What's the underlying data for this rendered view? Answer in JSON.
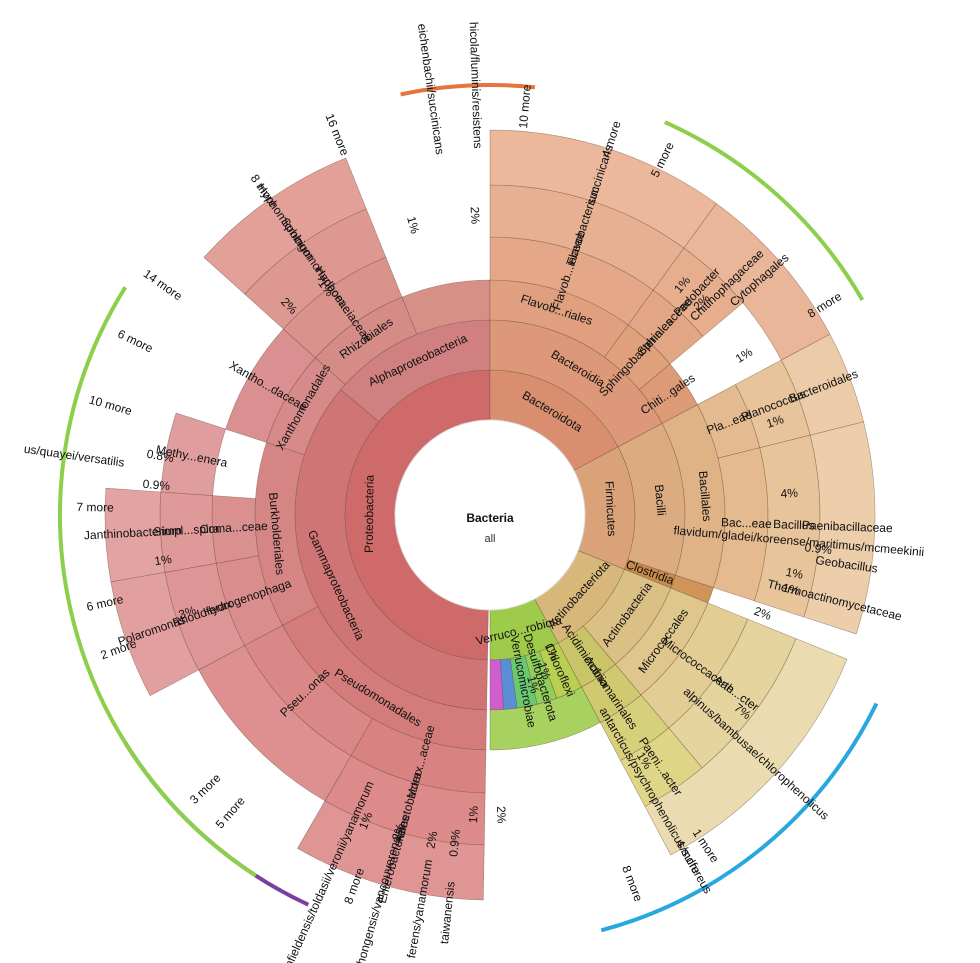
{
  "center": {
    "title": "Bacteria",
    "subtitle": "all"
  },
  "chart_data": {
    "type": "sunburst",
    "root": "Bacteria",
    "arcs": [
      {
        "start": -12,
        "end": 6,
        "color": "#e7743a"
      },
      {
        "start": 24,
        "end": 60,
        "color": "#8ccf4a"
      },
      {
        "start": 116,
        "end": 165,
        "color": "#29a8e0"
      },
      {
        "start": 205,
        "end": 238,
        "color": "#7b3fa0"
      },
      {
        "start": -147,
        "end": -58,
        "color": "#8ccf4a"
      }
    ],
    "levels": [
      {
        "r0": 95,
        "r1": 145,
        "nodes": [
          {
            "label": "Proteobacteria",
            "start": -179,
            "end": 0,
            "color": "#cf6a6a"
          },
          {
            "label": "Bacteroidota",
            "start": 0,
            "end": 62,
            "color": "#d98f6f"
          },
          {
            "label": "Firmicutes",
            "start": 62,
            "end": 112,
            "color": "#d9a278"
          },
          {
            "label": "Actinobacteriota",
            "start": 112,
            "end": 152,
            "color": "#d8b77a"
          },
          {
            "label": "Verruco...robiota",
            "start": 152,
            "end": 180,
            "color": "#9ecb4a"
          }
        ]
      },
      {
        "r0": 145,
        "r1": 195,
        "nodes": [
          {
            "label": "Gammaproteobacteria",
            "start": -179,
            "end": -50,
            "color": "#d07575"
          },
          {
            "label": "Alphaproteobacteria",
            "start": -50,
            "end": 0,
            "color": "#d08080"
          },
          {
            "label": "Bacteroidia",
            "start": 0,
            "end": 62,
            "color": "#dc9878"
          },
          {
            "label": "Bacilli",
            "start": 62,
            "end": 108,
            "color": "#dcab80"
          },
          {
            "label": "Clostridia",
            "start": 108,
            "end": 112,
            "color": "#c98a4a"
          },
          {
            "label": "Actinobacteria",
            "start": 112,
            "end": 140,
            "color": "#dbc085"
          },
          {
            "label": "Acidimicrobiia",
            "start": 140,
            "end": 152,
            "color": "#c9c468"
          },
          {
            "label": "Chloroflexi",
            "start": 152,
            "end": 160,
            "color": "#b8cf52"
          },
          {
            "label": "Desulfobacterota",
            "start": 160,
            "end": 166,
            "color": "#8fcf5a"
          },
          {
            "label": "Verrucomicrobiae",
            "start": 166,
            "end": 172,
            "color": "#6cc86e"
          },
          {
            "label": "",
            "start": 172,
            "end": 176,
            "color": "#5a8fd8"
          },
          {
            "label": "",
            "start": 176,
            "end": 180,
            "color": "#cf5fcf"
          }
        ]
      },
      {
        "r0": 195,
        "r1": 235,
        "nodes": [
          {
            "label": "Pseudomonadales",
            "start": -179,
            "end": -118,
            "color": "#d47c7c"
          },
          {
            "label": "Burkholderiales",
            "start": -118,
            "end": -72,
            "color": "#d68585"
          },
          {
            "label": "Xanthomonadales",
            "start": -72,
            "end": -48,
            "color": "#d68a8a"
          },
          {
            "label": "Rhizobiales",
            "start": -48,
            "end": -22,
            "color": "#d58b86"
          },
          {
            "label": "",
            "start": -22,
            "end": 0,
            "color": "#d69088"
          },
          {
            "label": "Flavob...riales",
            "start": 0,
            "end": 36,
            "color": "#e0a080"
          },
          {
            "label": "Sphingobacteriales",
            "start": 36,
            "end": 50,
            "color": "#dfa07c"
          },
          {
            "label": "Chiti...gales",
            "start": 50,
            "end": 62,
            "color": "#dd9a76"
          },
          {
            "label": "Bacillales",
            "start": 62,
            "end": 108,
            "color": "#e0b387"
          },
          {
            "label": "",
            "start": 108,
            "end": 112,
            "color": "#cf9456"
          },
          {
            "label": "Micrococcales",
            "start": 112,
            "end": 140,
            "color": "#dec68c"
          },
          {
            "label": "Actinomarinales",
            "start": 140,
            "end": 152,
            "color": "#d0c970"
          },
          {
            "label": "",
            "start": 152,
            "end": 180,
            "color": "#a8d260"
          }
        ]
      },
      {
        "r0": 235,
        "r1": 278,
        "nodes": [
          {
            "label": "Morax...aceae",
            "start": -179,
            "end": -150,
            "color": "#d88282"
          },
          {
            "label": "Pseu...onas",
            "start": -150,
            "end": -118,
            "color": "#da8787"
          },
          {
            "label": "Hydrogenophaga",
            "start": -118,
            "end": -100,
            "color": "#da8d8d"
          },
          {
            "label": "Coma...ceae",
            "start": -100,
            "end": -86,
            "color": "#db9090"
          },
          {
            "label": "Xantho...daceae",
            "start": -72,
            "end": -48,
            "color": "#da9090"
          },
          {
            "label": "Hyphom...iaceae",
            "start": -48,
            "end": -22,
            "color": "#da928c"
          },
          {
            "label": "Flavob...iaceae",
            "start": 0,
            "end": 36,
            "color": "#e4a888"
          },
          {
            "label": "Sphin...aceae",
            "start": 36,
            "end": 50,
            "color": "#e3a684"
          },
          {
            "label": "Pla...eae",
            "start": 62,
            "end": 76,
            "color": "#e4ba90"
          },
          {
            "label": "Bac...eae",
            "start": 76,
            "end": 108,
            "color": "#e4ba8e"
          },
          {
            "label": "Micrococcaceae",
            "start": 112,
            "end": 140,
            "color": "#e2cd94"
          },
          {
            "label": "",
            "start": 140,
            "end": 152,
            "color": "#d7d07a"
          }
        ]
      },
      {
        "r0": 278,
        "r1": 330,
        "nodes": [
          {
            "label": "Acinetobacter",
            "start": -179,
            "end": -150,
            "color": "#dc8a8a"
          },
          {
            "label": "",
            "start": -150,
            "end": -118,
            "color": "#de9090"
          },
          {
            "label": "Rhodoferax",
            "start": -118,
            "end": -100,
            "color": "#de9595"
          },
          {
            "label": "Simpl...spira",
            "start": -100,
            "end": -86,
            "color": "#df9999"
          },
          {
            "label": "Methy...enera",
            "start": -86,
            "end": -72,
            "color": "#df9d9d"
          },
          {
            "label": "Sphingomonadaceae",
            "start": -48,
            "end": -22,
            "color": "#de9892"
          },
          {
            "label": "Flavobacterium",
            "start": 0,
            "end": 36,
            "color": "#e8b092"
          },
          {
            "label": "Pedobacter",
            "start": 36,
            "end": 50,
            "color": "#e7ae8e"
          },
          {
            "label": "Planococcus",
            "start": 62,
            "end": 76,
            "color": "#e8c49a"
          },
          {
            "label": "Bacillus",
            "start": 76,
            "end": 108,
            "color": "#e8c49a"
          },
          {
            "label": "Arth...cter",
            "start": 112,
            "end": 140,
            "color": "#e6d49e"
          },
          {
            "label": "Paeni...acter",
            "start": 140,
            "end": 152,
            "color": "#dfd586"
          }
        ]
      },
      {
        "r0": 330,
        "r1": 385,
        "nodes": [
          {
            "label": "Enterobacterales",
            "start": -179,
            "end": -150,
            "color": "#e09595"
          },
          {
            "label": "Polaromonas",
            "start": -118,
            "end": -100,
            "color": "#e29f9f"
          },
          {
            "label": "Janthinobacterium",
            "start": -100,
            "end": -86,
            "color": "#e3a3a3"
          },
          {
            "label": "Hyphomicrobium",
            "start": -48,
            "end": -22,
            "color": "#e2a099"
          },
          {
            "label": "succinicans",
            "start": 0,
            "end": 36,
            "color": "#ebb89c"
          },
          {
            "label": "Cytophagales",
            "start": 36,
            "end": 62,
            "color": "#eab69a"
          },
          {
            "label": "Bacteroidales",
            "start": 62,
            "end": 76,
            "color": "#eccca8"
          },
          {
            "label": "Paenibacillaceae",
            "start": 76,
            "end": 108,
            "color": "#ecceaa"
          },
          {
            "label": "alpinus/bambusae/chlorophenolicus",
            "start": 112,
            "end": 152,
            "color": "#eadcb0"
          }
        ]
      }
    ],
    "outer_labels": [
      {
        "text": "Bacteria",
        "angle": 0,
        "r": 0
      },
      {
        "text": "16 more",
        "angle": -22,
        "r": 410
      },
      {
        "text": "8 more",
        "angle": -35,
        "r": 395
      },
      {
        "text": "14 more",
        "angle": -55,
        "r": 400
      },
      {
        "text": "6 more",
        "angle": -64,
        "r": 395
      },
      {
        "text": "10 more",
        "angle": -74,
        "r": 395
      },
      {
        "text": "7 more",
        "angle": -89,
        "r": 395
      },
      {
        "text": "6 more",
        "angle": -103,
        "r": 395
      },
      {
        "text": "2 more",
        "angle": -110,
        "r": 395
      },
      {
        "text": "3 more",
        "angle": -134,
        "r": 395
      },
      {
        "text": "5 more",
        "angle": -139,
        "r": 395
      },
      {
        "text": "8 more",
        "angle": -160,
        "r": 395
      },
      {
        "text": "10 more",
        "angle": 5,
        "r": 410
      },
      {
        "text": "4 more",
        "angle": 18,
        "r": 395
      },
      {
        "text": "5 more",
        "angle": 26,
        "r": 395
      },
      {
        "text": "8 more",
        "angle": 58,
        "r": 395
      },
      {
        "text": "1 more",
        "angle": 147,
        "r": 395
      },
      {
        "text": "4 more",
        "angle": 150,
        "r": 395
      },
      {
        "text": "8 more",
        "angle": 159,
        "r": 395
      }
    ],
    "percent_labels": [
      {
        "text": "1%",
        "angle": -15,
        "r": 300
      },
      {
        "text": "2%",
        "angle": -3,
        "r": 300
      },
      {
        "text": "1%",
        "angle": -36,
        "r": 280
      },
      {
        "text": "2%",
        "angle": -44,
        "r": 290
      },
      {
        "text": "0.8%",
        "angle": -80,
        "r": 335
      },
      {
        "text": "0.9%",
        "angle": -85,
        "r": 335
      },
      {
        "text": "1%",
        "angle": -98,
        "r": 330
      },
      {
        "text": "3%",
        "angle": -108,
        "r": 318
      },
      {
        "text": "1%",
        "angle": -158,
        "r": 330
      },
      {
        "text": "2%",
        "angle": -164,
        "r": 330
      },
      {
        "text": "2%",
        "angle": -170,
        "r": 330
      },
      {
        "text": "0.9%",
        "angle": -174,
        "r": 330
      },
      {
        "text": "1%",
        "angle": -177,
        "r": 300
      },
      {
        "text": "2%",
        "angle": 178,
        "r": 300
      },
      {
        "text": "1%",
        "angle": 40,
        "r": 300
      },
      {
        "text": "2%",
        "angle": 45,
        "r": 300
      },
      {
        "text": "1%",
        "angle": 58,
        "r": 300
      },
      {
        "text": "1%",
        "angle": 72,
        "r": 300
      },
      {
        "text": "4%",
        "angle": 86,
        "r": 300
      },
      {
        "text": "0.9%",
        "angle": 96,
        "r": 330
      },
      {
        "text": "1%",
        "angle": 101,
        "r": 310
      },
      {
        "text": "1%",
        "angle": 104,
        "r": 310
      },
      {
        "text": "2%",
        "angle": 110,
        "r": 290
      },
      {
        "text": "7%",
        "angle": 128,
        "r": 320
      },
      {
        "text": "1%",
        "angle": 148,
        "r": 290
      },
      {
        "text": "1%",
        "angle": 156,
        "r": 150
      },
      {
        "text": "1%",
        "angle": 161,
        "r": 165
      },
      {
        "text": "1%",
        "angle": 166,
        "r": 175
      }
    ],
    "leaf_labels": [
      {
        "text": "flavidum/gladei/koreense/maritimus/mcmeekinii",
        "angle": 95,
        "r": 310
      },
      {
        "text": "Geobacillus",
        "angle": 98,
        "r": 360
      },
      {
        "text": "Thermoactinomycetaceae",
        "angle": 104,
        "r": 355
      },
      {
        "text": "antarcticus/psychrophenolicus/sulfureus",
        "angle": 150,
        "r": 330
      },
      {
        "text": "Chitinophagaceae",
        "angle": 46,
        "r": 330
      },
      {
        "text": "richfieldensis/toldasii/veronii/yanamorum",
        "angle": -156,
        "r": 400
      },
      {
        "text": "chongensis/vancouverensis",
        "angle": -164,
        "r": 400
      },
      {
        "text": "ferens/yanamorum",
        "angle": -170,
        "r": 400
      },
      {
        "text": "taiwanensis",
        "angle": -174,
        "r": 400
      },
      {
        "text": "eichenbachii/succinicans",
        "angle": -8,
        "r": 430
      },
      {
        "text": "hicola/fluminis/resistens",
        "angle": -2,
        "r": 430
      },
      {
        "text": "us/quayei/versatilis",
        "angle": -82,
        "r": 420
      }
    ]
  }
}
